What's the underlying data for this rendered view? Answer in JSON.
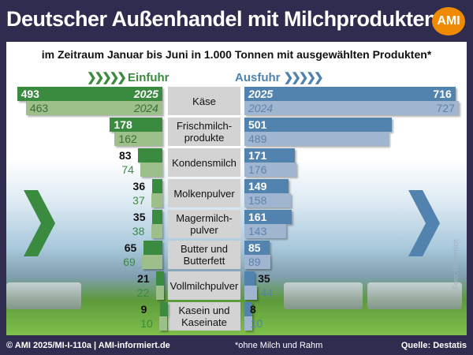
{
  "header": {
    "title": "Deutscher Außenhandel mit Milchprodukten",
    "logo": "AMI"
  },
  "chart_data": {
    "type": "bar",
    "title": "Deutscher Außenhandel mit Milchprodukten",
    "subtitle": "im Zeitraum Januar bis Juni in 1.000 Tonnen mit ausgewählten Produkten*",
    "left_label": "Einfuhr",
    "right_label": "Ausfuhr",
    "year_labels": [
      "2025",
      "2024"
    ],
    "categories": [
      "Käse",
      "Frischmilch-\nprodukte",
      "Kondensmilch",
      "Molkenpulver",
      "Magermilch-\npulver",
      "Butter und\nButterfett",
      "Vollmilchpulver",
      "Kasein und\nKaseinate"
    ],
    "series": [
      {
        "name": "Einfuhr 2025",
        "values": [
          493,
          178,
          83,
          36,
          35,
          65,
          21,
          9
        ]
      },
      {
        "name": "Einfuhr 2024",
        "values": [
          463,
          162,
          74,
          37,
          38,
          69,
          22,
          10
        ]
      },
      {
        "name": "Ausfuhr 2025",
        "values": [
          716,
          501,
          171,
          149,
          161,
          85,
          35,
          8
        ]
      },
      {
        "name": "Ausfuhr 2024",
        "values": [
          727,
          489,
          176,
          158,
          143,
          89,
          44,
          10
        ]
      }
    ],
    "colors": {
      "in2025": "#3a8a3f",
      "in2024": "#9dbf8a",
      "out2025": "#5283ae",
      "out2024": "#a0b6d0"
    }
  },
  "footer": {
    "copyright": "© AMI 2025/MI-I-110a | AMI-informiert.de",
    "note": "*ohne Milch und Rahm",
    "source": "Quelle: Destatis"
  },
  "photo_credit": "Foto: Nordmilch"
}
